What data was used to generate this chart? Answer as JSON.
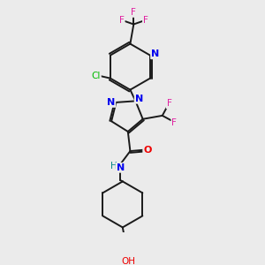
{
  "bg_color": "#ebebeb",
  "bond_color": "#1a1a1a",
  "atom_colors": {
    "F": "#e020a0",
    "Cl": "#00bb00",
    "N": "#0000ee",
    "O": "#ee0000",
    "H": "#008888",
    "C": "#1a1a1a"
  },
  "figsize": [
    3.0,
    3.0
  ],
  "dpi": 100
}
